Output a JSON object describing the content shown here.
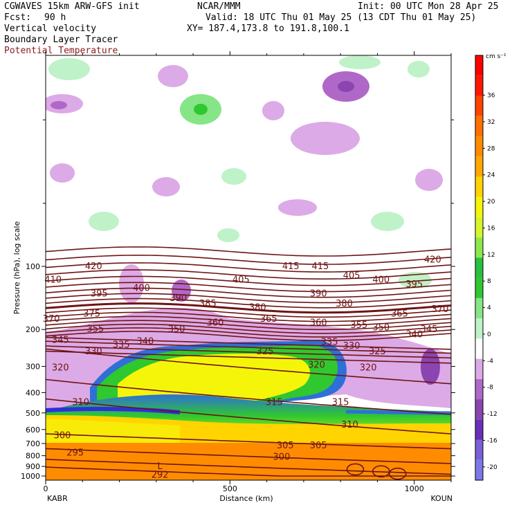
{
  "header": {
    "line1_left": "CGWAVES 15km ARW-GFS init",
    "line1_mid": "NCAR/MMM",
    "line1_right": "Init: 00 UTC Mon 28 Apr 25",
    "fcst_label": "Fcst:",
    "fcst_value": "90 h",
    "valid": "Valid: 18 UTC Thu 01 May 25 (13 CDT Thu 01 May 25)",
    "field1": "Vertical velocity",
    "xy": "XY= 187.4,173.8 to 191.8,100.1",
    "field2": "Boundary Layer Tracer",
    "field3": "Potential Temperature",
    "field3_color": "#8b1a1a"
  },
  "chart_data": {
    "type": "heatmap",
    "title": "Vertical velocity / Boundary Layer Tracer / Potential Temperature cross-section",
    "xlabel": "Distance (km)",
    "ylabel": "Pressure (hPa), log scale",
    "x_ticks": [
      "0",
      "500",
      "1000"
    ],
    "x_tick_values": [
      0,
      500,
      1000
    ],
    "xlim": [
      0,
      1100
    ],
    "y_ticks": [
      "100",
      "200",
      "300",
      "400",
      "500",
      "600",
      "700",
      "800",
      "900",
      "1000"
    ],
    "y_tick_values": [
      100,
      200,
      300,
      400,
      500,
      600,
      700,
      800,
      900,
      1000
    ],
    "y_scale": "log",
    "left_endpoint": "KABR",
    "right_endpoint": "KOUN",
    "colorbar": {
      "units": "cm s⁻¹",
      "tick_labels": [
        "36",
        "32",
        "28",
        "24",
        "20",
        "16",
        "12",
        "8",
        "4",
        "0",
        "-4",
        "-8",
        "-12",
        "-16",
        "-20"
      ],
      "tick_values": [
        36,
        32,
        28,
        24,
        20,
        16,
        12,
        8,
        4,
        0,
        -4,
        -8,
        -12,
        -16,
        -20
      ],
      "range": [
        -22,
        42
      ],
      "colors": [
        "#7b78e8",
        "#7a5fd6",
        "#6a2fb8",
        "#8a45b0",
        "#b068c8",
        "#dcaae6",
        "#ffffff",
        "#bff2c8",
        "#86e586",
        "#2fc82f",
        "#28c040",
        "#8ee84a",
        "#d6f52a",
        "#f5f50a",
        "#ffd400",
        "#ffa800",
        "#ff8c00",
        "#ff7000",
        "#ff4400",
        "#ff1800",
        "#ff0000"
      ]
    },
    "contour_labels": {
      "series": "Potential Temperature",
      "labels": [
        {
          "text": "420",
          "x": 130,
          "p": 100
        },
        {
          "text": "410",
          "x": 20,
          "p": 116
        },
        {
          "text": "400",
          "x": 260,
          "p": 127
        },
        {
          "text": "395",
          "x": 145,
          "p": 135
        },
        {
          "text": "390",
          "x": 360,
          "p": 142
        },
        {
          "text": "385",
          "x": 440,
          "p": 151
        },
        {
          "text": "380",
          "x": 575,
          "p": 157
        },
        {
          "text": "375",
          "x": 125,
          "p": 168
        },
        {
          "text": "370",
          "x": 15,
          "p": 178
        },
        {
          "text": "365",
          "x": 605,
          "p": 178
        },
        {
          "text": "360",
          "x": 460,
          "p": 186
        },
        {
          "text": "360",
          "x": 740,
          "p": 186
        },
        {
          "text": "355",
          "x": 135,
          "p": 199
        },
        {
          "text": "355",
          "x": 850,
          "p": 191
        },
        {
          "text": "350",
          "x": 355,
          "p": 200
        },
        {
          "text": "350",
          "x": 910,
          "p": 196
        },
        {
          "text": "345",
          "x": 40,
          "p": 225
        },
        {
          "text": "340",
          "x": 270,
          "p": 228
        },
        {
          "text": "340",
          "x": 1000,
          "p": 211
        },
        {
          "text": "345",
          "x": 1040,
          "p": 200
        },
        {
          "text": "335",
          "x": 205,
          "p": 237
        },
        {
          "text": "335",
          "x": 770,
          "p": 230
        },
        {
          "text": "330",
          "x": 130,
          "p": 255
        },
        {
          "text": "330",
          "x": 830,
          "p": 240
        },
        {
          "text": "325",
          "x": 595,
          "p": 255
        },
        {
          "text": "325",
          "x": 900,
          "p": 255
        },
        {
          "text": "320",
          "x": 40,
          "p": 304
        },
        {
          "text": "320",
          "x": 735,
          "p": 295
        },
        {
          "text": "320",
          "x": 875,
          "p": 305
        },
        {
          "text": "315",
          "x": 620,
          "p": 445
        },
        {
          "text": "315",
          "x": 800,
          "p": 445
        },
        {
          "text": "310",
          "x": 95,
          "p": 445
        },
        {
          "text": "310",
          "x": 825,
          "p": 570
        },
        {
          "text": "305",
          "x": 650,
          "p": 715
        },
        {
          "text": "305",
          "x": 740,
          "p": 715
        },
        {
          "text": "300",
          "x": 45,
          "p": 640
        },
        {
          "text": "300",
          "x": 640,
          "p": 810
        },
        {
          "text": "295",
          "x": 80,
          "p": 775
        },
        {
          "text": "292",
          "x": 310,
          "p": 990
        },
        {
          "text": "400",
          "x": 910,
          "p": 116
        },
        {
          "text": "395",
          "x": 1000,
          "p": 122
        },
        {
          "text": "405",
          "x": 530,
          "p": 116
        },
        {
          "text": "405",
          "x": 830,
          "p": 111
        },
        {
          "text": "415",
          "x": 665,
          "p": 100
        },
        {
          "text": "415",
          "x": 745,
          "p": 100
        },
        {
          "text": "420",
          "x": 1050,
          "p": 93
        },
        {
          "text": "390",
          "x": 740,
          "p": 135
        },
        {
          "text": "380",
          "x": 810,
          "p": 151
        },
        {
          "text": "370",
          "x": 1070,
          "p": 160
        },
        {
          "text": "365",
          "x": 960,
          "p": 168
        }
      ],
      "low_marker": {
        "text": "L",
        "x": 310,
        "p": 900
      }
    },
    "grid": false
  }
}
